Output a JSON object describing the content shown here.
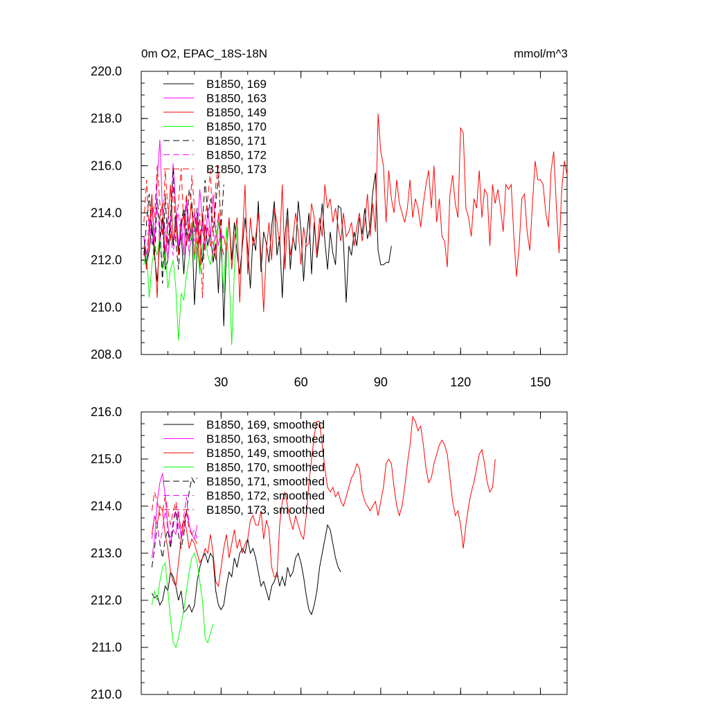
{
  "chart_data": [
    {
      "type": "line",
      "title_left": "0m O2, EPAC_18S-18N",
      "title_right": "mmol/m^3",
      "xlim": [
        0,
        160
      ],
      "ylim": [
        208,
        220
      ],
      "y_ticks": [
        208,
        210,
        212,
        214,
        216,
        218,
        220
      ],
      "y_tick_labels": [
        "208.0",
        "210.0",
        "212.0",
        "214.0",
        "216.0",
        "218.0",
        "220.0"
      ],
      "x_ticks": [
        30,
        60,
        90,
        120,
        150
      ],
      "x_tick_labels": [
        "30",
        "60",
        "90",
        "120",
        "150"
      ],
      "series": [
        {
          "name": "B1850, 169",
          "color": "#000000",
          "dash": "solid",
          "x_start": 1,
          "values": [
            213.0,
            211.8,
            212.4,
            213.5,
            212.2,
            211.1,
            212.8,
            213.8,
            211.6,
            212.0,
            213.4,
            212.6,
            213.9,
            212.4,
            213.1,
            211.4,
            213.2,
            212.8,
            213.6,
            210.1,
            212.4,
            213.0,
            211.9,
            213.5,
            212.6,
            213.2,
            211.9,
            212.7,
            210.6,
            213.3,
            209.2,
            212.4,
            213.8,
            212.0,
            213.6,
            212.3,
            211.4,
            212.6,
            213.8,
            212.5,
            210.8,
            213.0,
            212.4,
            214.5,
            211.5,
            213.2,
            212.7,
            211.9,
            213.4,
            214.5,
            212.2,
            213.0,
            210.4,
            213.0,
            214.2,
            211.6,
            213.0,
            212.4,
            214.5,
            213.3,
            211.1,
            212.8,
            214.0,
            211.4,
            213.6,
            212.1,
            213.0,
            214.4,
            212.8,
            211.6,
            213.2,
            212.3,
            211.8,
            214.3,
            214.2,
            212.7,
            210.2,
            212.6,
            212.2,
            213.2,
            212.6,
            213.8,
            213.1,
            214.2,
            212.9,
            213.4,
            214.9,
            215.7,
            212.4,
            211.8,
            211.8,
            211.9,
            211.9,
            212.6
          ]
        },
        {
          "name": "B1850, 163",
          "color": "#ff00ff",
          "dash": "solid",
          "x_start": 1,
          "values": [
            212.4,
            211.6,
            213.0,
            214.2,
            212.8,
            215.4,
            217.1,
            214.0,
            213.2,
            212.0,
            213.6,
            216.1,
            214.2,
            212.6,
            213.8,
            212.2,
            214.6,
            213.4,
            212.8,
            214.0,
            213.2,
            215.0,
            213.6,
            212.4,
            214.2,
            213.0,
            214.8,
            213.2,
            212.6,
            213.4
          ]
        },
        {
          "name": "B1850, 149",
          "color": "#ff0000",
          "dash": "solid",
          "x_start": 1,
          "values": [
            212.6,
            211.6,
            213.2,
            214.8,
            212.4,
            210.4,
            213.8,
            214.4,
            212.0,
            213.6,
            215.2,
            212.8,
            213.6,
            212.2,
            213.4,
            214.0,
            212.6,
            213.6,
            214.4,
            212.0,
            213.8,
            211.6,
            214.0,
            212.8,
            213.4,
            212.6,
            212.8,
            212.0,
            214.0,
            212.9,
            213.0,
            212.4,
            213.8,
            211.6,
            212.9,
            213.8,
            210.2,
            213.0,
            215.2,
            211.4,
            213.8,
            212.6,
            213.0,
            214.0,
            212.2,
            209.8,
            212.4,
            213.6,
            212.0,
            214.2,
            213.6,
            212.6,
            215.2,
            211.6,
            213.8,
            212.2,
            212.9,
            214.0,
            213.2,
            211.8,
            213.4,
            212.6,
            212.7,
            214.4,
            213.8,
            212.2,
            213.8,
            213.0,
            215.2,
            214.2,
            214.6,
            213.6,
            214.2,
            213.4,
            212.8,
            214.0,
            213.0,
            213.2,
            213.6,
            212.6,
            213.4,
            214.0,
            212.8,
            213.6,
            214.8,
            213.0,
            214.4,
            213.2,
            218.2,
            216.6,
            216.0,
            213.6,
            215.8,
            214.6,
            214.0,
            215.4,
            214.4,
            214.0,
            213.6,
            214.2,
            215.4,
            213.8,
            214.6,
            214.2,
            213.4,
            214.4,
            215.2,
            215.8,
            214.2,
            216.0,
            213.6,
            214.6,
            213.0,
            212.8,
            211.7,
            214.8,
            215.6,
            214.4,
            213.8,
            217.6,
            217.4,
            214.2,
            213.8,
            213.0,
            214.6,
            214.2,
            215.8,
            213.8,
            215.0,
            214.8,
            212.6,
            215.2,
            214.4,
            215.0,
            214.2,
            213.2,
            215.2,
            215.0,
            215.2,
            213.0,
            211.3,
            212.6,
            214.6,
            214.8,
            213.2,
            212.4,
            214.4,
            216.2,
            215.4,
            215.4,
            215.2,
            214.0,
            213.4,
            215.8,
            216.6,
            214.2,
            212.3,
            215.0,
            216.2,
            215.6
          ]
        },
        {
          "name": "B1850, 170",
          "color": "#00ff00",
          "dash": "solid",
          "x_start": 1,
          "values": [
            211.8,
            212.4,
            210.4,
            211.8,
            212.6,
            212.2,
            213.0,
            211.6,
            212.4,
            210.8,
            211.6,
            212.0,
            210.8,
            208.6,
            210.6,
            210.3,
            211.4,
            212.0,
            213.6,
            212.0,
            212.8,
            211.4,
            212.6,
            213.0,
            212.2,
            211.8,
            212.4,
            213.0,
            213.6,
            212.4,
            210.6,
            213.4,
            211.6,
            208.4,
            211.6,
            213.5
          ]
        },
        {
          "name": "B1850, 171",
          "color": "#000000",
          "dash": "dashed",
          "x_start": 1,
          "values": [
            212.2,
            213.6,
            214.8,
            213.2,
            212.0,
            214.6,
            213.4,
            211.0,
            214.8,
            212.6,
            213.8,
            215.9,
            212.8,
            211.6,
            213.6,
            214.2,
            213.2,
            215.0,
            214.4,
            213.2,
            214.2,
            212.8,
            213.6,
            215.4,
            213.8,
            214.6,
            213.0,
            214.4,
            215.6,
            213.4,
            215.2
          ]
        },
        {
          "name": "B1850, 172",
          "color": "#ff00ff",
          "dash": "dashed",
          "x_start": 1,
          "values": [
            213.0,
            212.2,
            213.8,
            212.6,
            213.4,
            214.2,
            212.8,
            213.6,
            212.4,
            213.8,
            213.0,
            212.2,
            213.6,
            214.0,
            212.8,
            213.2,
            214.6,
            212.2,
            213.4,
            212.8,
            214.0,
            212.6,
            213.4,
            212.4,
            214.2,
            213.0,
            212.2,
            213.4,
            213.8,
            212.8,
            213.2
          ]
        },
        {
          "name": "B1850, 173",
          "color": "#ff0000",
          "dash": "dashed",
          "x_start": 1,
          "values": [
            213.6,
            215.4,
            213.2,
            214.6,
            213.8,
            216.0,
            214.4,
            213.0,
            215.8,
            214.2,
            212.8,
            215.2,
            213.6,
            214.4,
            215.9,
            213.4,
            214.8,
            212.8,
            215.6,
            214.2,
            212.4,
            214.0,
            210.4,
            213.8,
            214.6,
            215.8,
            213.0,
            215.2,
            216.0,
            212.8,
            212.2
          ]
        }
      ]
    },
    {
      "type": "line",
      "title_left": "",
      "title_right": "",
      "xlim": [
        0,
        160
      ],
      "ylim": [
        210,
        216
      ],
      "y_ticks": [
        210,
        211,
        212,
        213,
        214,
        215,
        216
      ],
      "y_tick_labels": [
        "210.0",
        "211.0",
        "212.0",
        "213.0",
        "214.0",
        "215.0",
        "216.0"
      ],
      "x_ticks": [
        30,
        60,
        90,
        120,
        150
      ],
      "x_tick_labels": [],
      "series": [
        {
          "name": "B1850, 169, smoothed",
          "color": "#000000",
          "dash": "solid",
          "x_start": 4,
          "values": [
            212.15,
            212.05,
            212.1,
            211.9,
            212.0,
            212.3,
            212.2,
            212.6,
            212.5,
            212.3,
            212.0,
            212.2,
            211.75,
            211.8,
            211.9,
            211.75,
            211.9,
            212.4,
            212.7,
            212.9,
            213.0,
            212.8,
            213.0,
            212.9,
            212.2,
            211.9,
            211.8,
            211.9,
            212.3,
            212.6,
            212.5,
            212.9,
            212.7,
            213.0,
            213.1,
            213.0,
            213.3,
            213.0,
            213.1,
            212.9,
            212.6,
            212.3,
            212.4,
            212.2,
            212.0,
            212.3,
            212.4,
            212.6,
            212.3,
            212.5,
            212.3,
            212.7,
            212.5,
            212.6,
            212.9,
            213.0,
            212.8,
            212.5,
            212.1,
            211.8,
            211.7,
            211.9,
            212.2,
            212.7,
            213.0,
            213.3,
            213.6,
            213.5,
            213.2,
            212.9,
            212.7,
            212.6
          ]
        },
        {
          "name": "B1850, 163, smoothed",
          "color": "#ff00ff",
          "dash": "solid",
          "x_start": 4,
          "values": [
            212.9,
            213.3,
            214.1,
            214.5,
            214.7,
            214.2,
            213.6,
            213.2,
            213.5,
            213.4,
            213.9,
            213.3,
            213.5,
            213.9,
            213.6,
            213.4,
            213.3,
            213.6
          ]
        },
        {
          "name": "B1850, 149, smoothed",
          "color": "#ff0000",
          "dash": "solid",
          "x_start": 4,
          "values": [
            213.4,
            213.8,
            213.6,
            214.0,
            213.9,
            213.4,
            213.1,
            212.6,
            212.4,
            212.3,
            212.8,
            213.3,
            213.7,
            213.5,
            213.1,
            213.3,
            213.2,
            213.0,
            212.8,
            212.9,
            213.1,
            213.0,
            213.4,
            213.0,
            212.4,
            212.3,
            212.7,
            213.1,
            213.4,
            212.9,
            213.2,
            213.5,
            213.1,
            213.3,
            213.0,
            213.2,
            213.3,
            213.7,
            213.8,
            213.6,
            213.6,
            213.9,
            213.3,
            213.7,
            213.5,
            212.7,
            212.5,
            212.5,
            213.6,
            214.1,
            214.3,
            214.0,
            213.7,
            213.5,
            213.8,
            213.6,
            213.4,
            213.3,
            213.8,
            214.5,
            215.0,
            215.5,
            215.8,
            215.8,
            215.3,
            214.8,
            214.4,
            214.3,
            214.4,
            214.2,
            214.3,
            214.1,
            214.0,
            214.2,
            214.4,
            214.6,
            214.7,
            214.9,
            214.8,
            214.3,
            214.1,
            214.0,
            213.9,
            214.0,
            214.1,
            213.8,
            214.1,
            214.4,
            214.9,
            215.0,
            214.9,
            214.4,
            214.0,
            213.8,
            214.0,
            214.4,
            214.9,
            215.3,
            215.9,
            215.8,
            215.6,
            215.7,
            215.3,
            214.8,
            214.5,
            214.6,
            214.9,
            215.1,
            215.3,
            215.4,
            215.3,
            215.1,
            214.6,
            214.1,
            213.8,
            213.9,
            213.6,
            213.1,
            213.6,
            214.0,
            214.3,
            214.5,
            214.8,
            215.1,
            215.2,
            214.9,
            214.5,
            214.3,
            214.4,
            215.0
          ]
        },
        {
          "name": "B1850, 170, smoothed",
          "color": "#00ff00",
          "dash": "solid",
          "x_start": 4,
          "values": [
            211.9,
            212.2,
            212.0,
            212.4,
            212.7,
            212.8,
            212.2,
            211.6,
            211.1,
            211.0,
            211.2,
            211.5,
            211.8,
            212.2,
            212.6,
            212.9,
            213.0,
            212.8,
            212.4,
            212.0,
            211.2,
            211.1,
            211.3,
            211.5
          ]
        },
        {
          "name": "B1850, 171, smoothed",
          "color": "#000000",
          "dash": "dashed",
          "x_start": 4,
          "values": [
            212.7,
            213.1,
            213.6,
            213.2,
            212.9,
            213.3,
            213.5,
            213.1,
            213.6,
            213.9,
            213.4,
            213.1,
            213.4,
            213.9,
            214.3,
            214.6,
            214.5,
            214.6
          ]
        },
        {
          "name": "B1850, 172, smoothed",
          "color": "#ff00ff",
          "dash": "dashed",
          "x_start": 4,
          "values": [
            213.3,
            213.8,
            213.6,
            213.2,
            213.5,
            213.9,
            213.5,
            213.3,
            213.7,
            214.0,
            213.6,
            213.4,
            213.8,
            214.2,
            213.6,
            213.4,
            213.5,
            213.3
          ]
        },
        {
          "name": "B1850, 173, smoothed",
          "color": "#ff0000",
          "dash": "dashed",
          "x_start": 4,
          "values": [
            213.9,
            214.3,
            214.1,
            213.8,
            213.9,
            214.2,
            213.9,
            213.6,
            213.9,
            214.1,
            213.8,
            213.5,
            213.7,
            213.9,
            213.5,
            213.4,
            213.3,
            213.2
          ]
        }
      ]
    }
  ]
}
